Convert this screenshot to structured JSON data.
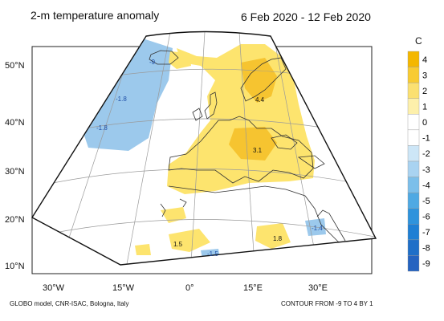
{
  "header": {
    "title": "2-m temperature anomaly",
    "period": "6 Feb 2020 - 12 Feb 2020"
  },
  "footer": {
    "model": "GLOBO model, CNR-ISAC, Bologna, Italy",
    "contour_note": "CONTOUR FROM -9 TO 4 BY 1"
  },
  "map": {
    "latitude_labels": [
      "50°N",
      "40°N",
      "30°N",
      "20°N",
      "10°N"
    ],
    "longitude_labels": [
      "30°W",
      "15°W",
      "0°",
      "15°E",
      "30°E"
    ],
    "anomaly_labels": [
      {
        "text": "-9",
        "sign": "neg"
      },
      {
        "text": "-1.8",
        "sign": "neg"
      },
      {
        "text": "-1.8",
        "sign": "neg"
      },
      {
        "text": "4.4",
        "sign": "pos"
      },
      {
        "text": "3.1",
        "sign": "pos"
      },
      {
        "text": "1.5",
        "sign": "pos"
      },
      {
        "text": "-1.5",
        "sign": "neg"
      },
      {
        "text": "1.8",
        "sign": "pos"
      },
      {
        "text": "-1.4",
        "sign": "neg"
      }
    ],
    "colors": {
      "strong_warm": "#f6c430",
      "warm": "#fde46e",
      "mild_warm": "#fff3a8",
      "cold": "#9cc9ec",
      "land_outline": "#333333",
      "grid": "#9a9a9a"
    }
  },
  "colorbar": {
    "unit": "C",
    "levels": [
      "4",
      "3",
      "2",
      "1",
      "0",
      "-1",
      "-2",
      "-3",
      "-4",
      "-5",
      "-6",
      "-7",
      "-8",
      "-9"
    ],
    "colors": [
      "#f4b700",
      "#f8cb32",
      "#fbe071",
      "#fdf0ab",
      "#ffffff",
      "#ffffff",
      "#cde6f7",
      "#a9d3f1",
      "#7cbfea",
      "#4fa9e3",
      "#2f93dc",
      "#1f7fd4",
      "#1f6fc8",
      "#2563c0"
    ]
  }
}
